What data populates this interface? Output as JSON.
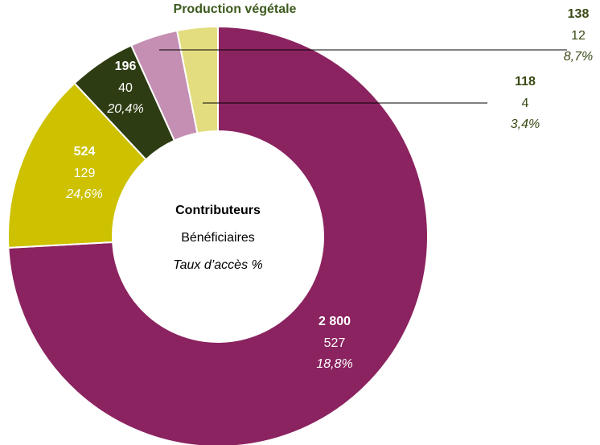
{
  "chart_data": {
    "type": "donut",
    "title": "Production végétale",
    "center_labels": [
      "Contributeurs",
      "Bénéficiaires",
      "Taux d’accès %"
    ],
    "values": [
      2800,
      524,
      196,
      138,
      118
    ],
    "value_labels": [
      "2 800",
      "524",
      "196",
      "138",
      "118"
    ],
    "beneficiaries": [
      527,
      129,
      40,
      12,
      4
    ],
    "rates": [
      18.8,
      24.6,
      20.4,
      8.7,
      3.4
    ],
    "rate_labels": [
      "18,8%",
      "24,6%",
      "20,4%",
      "8,7%",
      "3,4%"
    ],
    "colors": [
      "#8b2360",
      "#cdc100",
      "#2d3c12",
      "#c48fb2",
      "#e3dd7f"
    ]
  }
}
